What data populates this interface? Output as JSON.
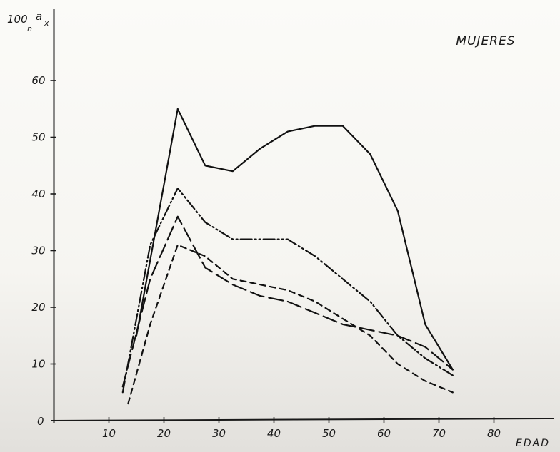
{
  "chart_data": {
    "type": "line",
    "title": "MUJERES",
    "xlabel": "EDAD",
    "ylabel": "100 ₙaₓ",
    "ylabel_parts": {
      "main": "100",
      "sub": "n",
      "letter": "a",
      "x": "x"
    },
    "xlim": [
      0,
      82
    ],
    "ylim": [
      0,
      73
    ],
    "x_ticks": [
      10,
      20,
      30,
      40,
      50,
      60,
      70,
      80
    ],
    "y_ticks": [
      10,
      20,
      30,
      40,
      50,
      60
    ],
    "x_tick_labels": [
      "10",
      "20",
      "30",
      "40",
      "50",
      "60",
      "70",
      "80"
    ],
    "y_tick_labels": [
      "10",
      "20",
      "30",
      "40",
      "50",
      "60"
    ],
    "origin_label": "0",
    "grid": false,
    "series": [
      {
        "style": "solid",
        "x": [
          15,
          22.5,
          27.5,
          32.5,
          37.5,
          42.5,
          47.5,
          52.5,
          57.5,
          62.5,
          67.5,
          72.5
        ],
        "y": [
          15,
          55,
          45,
          44,
          48,
          51,
          52,
          52,
          47,
          37,
          17,
          9
        ]
      },
      {
        "style": "dash-dot-dot",
        "x": [
          12.5,
          17.5,
          22.5,
          27.5,
          32.5,
          37.5,
          42.5,
          47.5,
          52.5,
          57.5,
          62.5,
          67.5,
          72.5
        ],
        "y": [
          5,
          31,
          41,
          35,
          32,
          32,
          32,
          29,
          25,
          21,
          15,
          11,
          8
        ]
      },
      {
        "style": "long-dash",
        "x": [
          12.5,
          17.5,
          22.5,
          27.5,
          32.5,
          37.5,
          42.5,
          47.5,
          52.5,
          57.5,
          62.5,
          67.5,
          72.5
        ],
        "y": [
          6,
          25,
          36,
          27,
          24,
          22,
          21,
          19,
          17,
          16,
          15,
          13,
          9
        ]
      },
      {
        "style": "short-dash",
        "x": [
          13.5,
          17.5,
          22.5,
          27.5,
          32.5,
          37.5,
          42.5,
          47.5,
          52.5,
          57.5,
          62.5,
          67.5,
          72.5
        ],
        "y": [
          3,
          17,
          31,
          29,
          25,
          24,
          23,
          21,
          18,
          15,
          10,
          7,
          5
        ]
      }
    ]
  }
}
